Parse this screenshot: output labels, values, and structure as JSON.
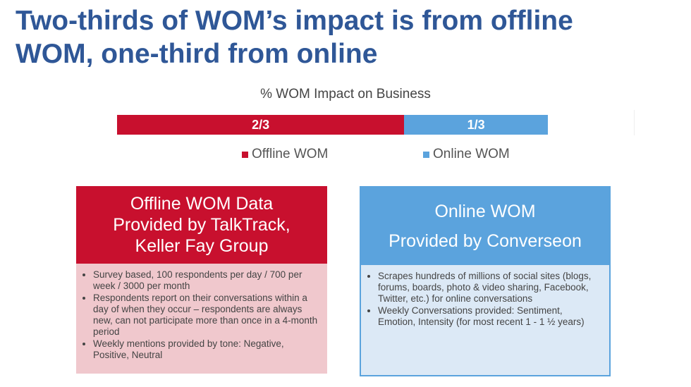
{
  "title_line1": "Two-thirds of WOM’s impact is from offline",
  "title_line2": "WOM, one-third from online",
  "chart_data": {
    "type": "bar",
    "orientation": "horizontal-stacked",
    "title": "% WOM Impact on Business",
    "series": [
      {
        "name": "Offline WOM",
        "value": 0.6667,
        "label": "2/3",
        "color": "#c8102e"
      },
      {
        "name": "Online WOM",
        "value": 0.3333,
        "label": "1/3",
        "color": "#5ba3dd"
      }
    ],
    "legend_position": "bottom"
  },
  "offline_card": {
    "heading_lines": [
      "Offline WOM Data",
      "Provided by TalkTrack,",
      "Keller Fay Group"
    ],
    "bullets": [
      "Survey based, 100 respondents per day / 700 per week / 3000 per month",
      "Respondents report on their conversations within a day of when they occur – respondents are always new, can not participate more than once in a  4-month period",
      "Weekly mentions provided by tone:  Negative, Positive, Neutral"
    ],
    "head_color": "#c8102e",
    "body_color": "#f0c8cd"
  },
  "online_card": {
    "heading_lines": [
      "Online WOM",
      "Provided by Converseon"
    ],
    "bullets": [
      "Scrapes hundreds of millions of social sites (blogs, forums, boards, photo & video sharing, Facebook, Twitter, etc.) for online conversations",
      "Weekly Conversations provided:  Sentiment, Emotion, Intensity (for most recent 1 - 1 ½ years)"
    ],
    "head_color": "#5ba3dd",
    "body_color": "#dce9f6"
  }
}
